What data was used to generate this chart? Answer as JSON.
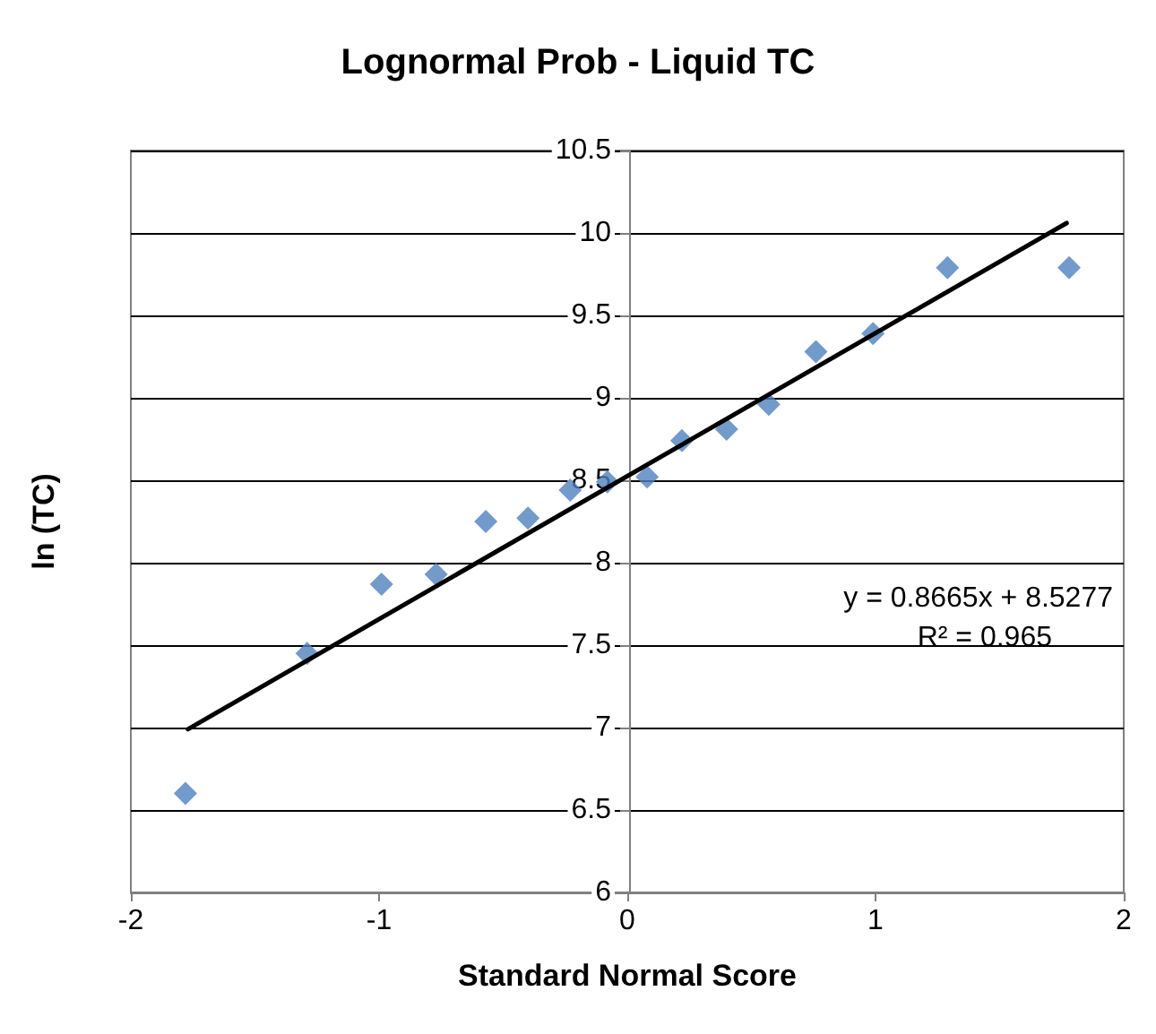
{
  "chart_data": {
    "type": "scatter",
    "title": "Lognormal Prob - Liquid TC",
    "xlabel": "Standard Normal Score",
    "ylabel": "ln (TC)",
    "xlim": [
      -2,
      2
    ],
    "xticks": [
      -2,
      -1,
      0,
      1,
      2
    ],
    "ylim": [
      6,
      10.5
    ],
    "yticks": [
      6,
      6.5,
      7,
      7.5,
      8,
      8.5,
      9,
      9.5,
      10,
      10.5
    ],
    "grid": "y",
    "marker": "diamond",
    "series": [
      {
        "type": "scatter",
        "color": "#4f81bd",
        "x": [
          -1.78,
          -1.29,
          -0.99,
          -0.77,
          -0.57,
          -0.4,
          -0.23,
          -0.08,
          0.08,
          0.22,
          0.4,
          0.57,
          0.76,
          0.99,
          1.29,
          1.78
        ],
        "values": [
          6.6,
          7.45,
          7.87,
          7.93,
          8.25,
          8.27,
          8.44,
          8.49,
          8.52,
          8.74,
          8.81,
          8.96,
          9.28,
          9.39,
          9.79,
          9.79
        ]
      },
      {
        "type": "line",
        "color": "#000000",
        "marker": "none",
        "x": [
          -1.77,
          1.77
        ],
        "values": [
          6.99,
          10.06
        ]
      }
    ],
    "annotations": [
      "y = 0.8665x + 8.5277",
      "R² = 0.965"
    ]
  }
}
